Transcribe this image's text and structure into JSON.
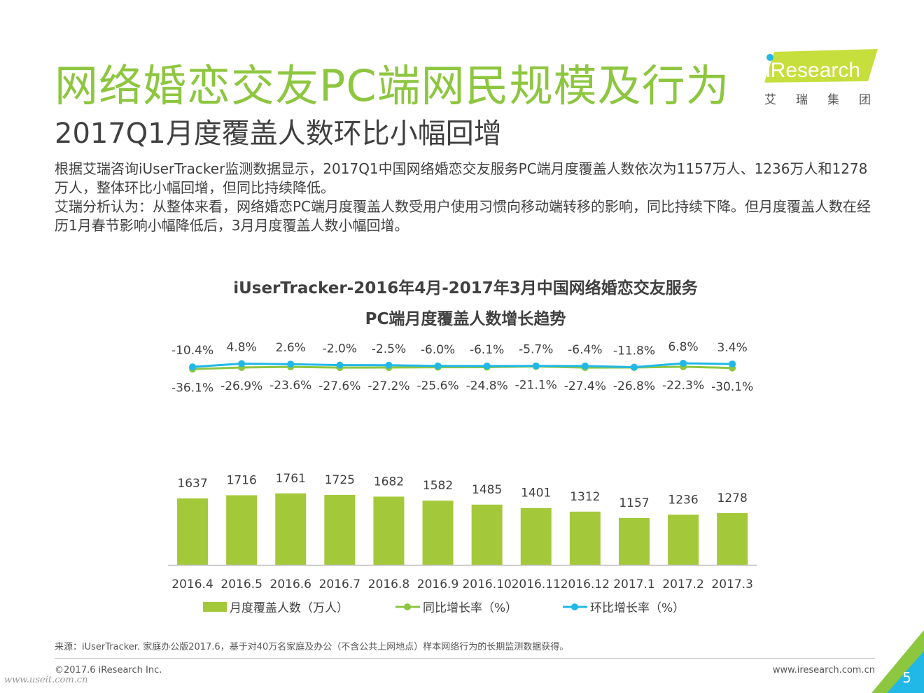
{
  "header": {
    "title": "网络婚恋交友PC端网民规模及行为",
    "subtitle": "2017Q1月度覆盖人数环比小幅回增"
  },
  "logo": {
    "brand": "iResearch",
    "sub": "艾瑞集团"
  },
  "body": {
    "paragraph1": "根据艾瑞咨询iUserTracker监测数据显示，2017Q1中国网络婚恋交友服务PC端月度覆盖人数依次为1157万人、1236万人和1278万人，整体环比小幅回增，但同比持续降低。",
    "paragraph2": "艾瑞分析认为：从整体来看，网络婚恋PC端月度覆盖人数受用户使用习惯向移动端转移的影响，同比持续下降。但月度覆盖人数在经历1月春节影响小幅降低后，3月月度覆盖人数小幅回增。"
  },
  "chart_data": {
    "type": "bar+line",
    "title_line1": "iUserTracker-2016年4月-2017年3月中国网络婚恋交友服务",
    "title_line2": "PC端月度覆盖人数增长趋势",
    "categories": [
      "2016.4",
      "2016.5",
      "2016.6",
      "2016.7",
      "2016.8",
      "2016.9",
      "2016.10",
      "2016.11",
      "2016.12",
      "2017.1",
      "2017.2",
      "2017.3"
    ],
    "series": [
      {
        "name": "月度覆盖人数（万人）",
        "type": "bar",
        "color": "#a3c93a",
        "values": [
          1637,
          1716,
          1761,
          1725,
          1682,
          1582,
          1485,
          1401,
          1312,
          1157,
          1236,
          1278
        ],
        "labels": [
          "1637",
          "1716",
          "1761",
          "1725",
          "1682",
          "1582",
          "1485",
          "1401",
          "1312",
          "1157",
          "1236",
          "1278"
        ]
      },
      {
        "name": "同比增长率（%）",
        "type": "line",
        "color": "#8dc63f",
        "values": [
          -36.1,
          -26.9,
          -23.6,
          -27.6,
          -27.2,
          -25.6,
          -24.8,
          -21.1,
          -27.4,
          -26.8,
          -22.3,
          -30.1
        ],
        "labels": [
          "-36.1%",
          "-26.9%",
          "-23.6%",
          "-27.6%",
          "-27.2%",
          "-25.6%",
          "-24.8%",
          "-21.1%",
          "-27.4%",
          "-26.8%",
          "-22.3%",
          "-30.1%"
        ]
      },
      {
        "name": "环比增长率（%）",
        "type": "line",
        "color": "#21b8e7",
        "values": [
          -10.4,
          4.8,
          2.6,
          -2.0,
          -2.5,
          -6.0,
          -6.1,
          -5.7,
          -6.4,
          -11.8,
          6.8,
          3.4
        ],
        "labels": [
          "-10.4%",
          "4.8%",
          "2.6%",
          "-2.0%",
          "-2.5%",
          "-6.0%",
          "-6.1%",
          "-5.7%",
          "-6.4%",
          "-11.8%",
          "6.8%",
          "3.4%"
        ]
      }
    ],
    "legend": [
      "月度覆盖人数（万人）",
      "同比增长率（%）",
      "环比增长率（%）"
    ],
    "legend_position": "bottom"
  },
  "footer": {
    "source": "来源：iUserTracker. 家庭办公版2017.6，基于对40万名家庭及办公（不含公共上网地点）样本网络行为的长期监测数据获得。",
    "copyright": "©2017.6 iResearch Inc.",
    "website": "www.iresearch.com.cn",
    "watermark": "www.useit.com.cn",
    "page_number": "5"
  },
  "colors": {
    "accent": "#8dc63f",
    "bar": "#a3c93a",
    "mom_line": "#21b8e7",
    "yoy_line": "#8dc63f"
  }
}
